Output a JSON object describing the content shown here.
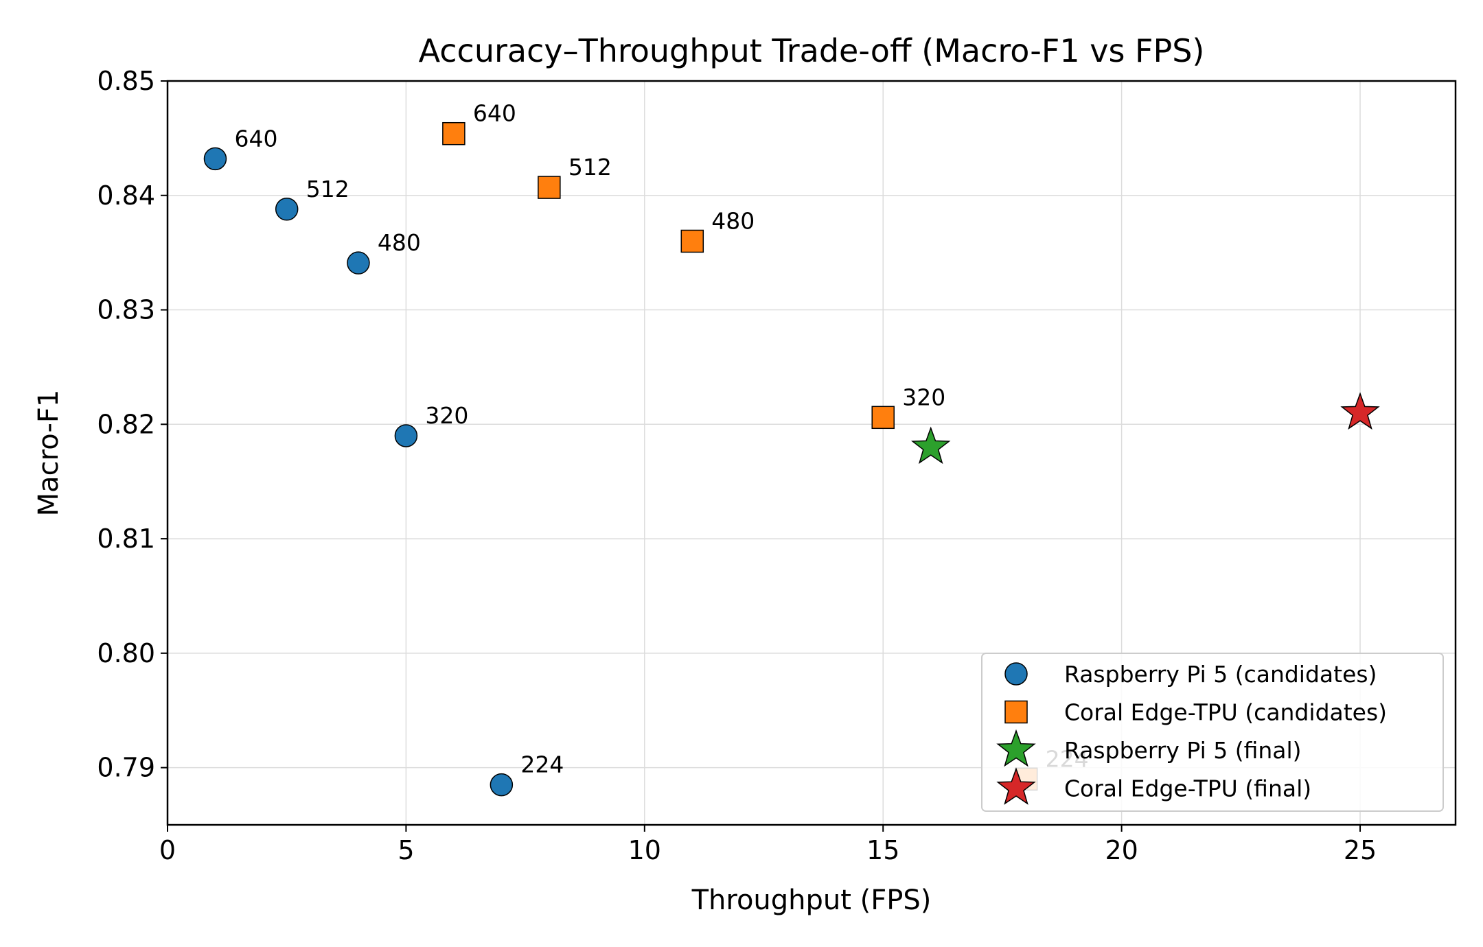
{
  "chart_data": {
    "type": "scatter",
    "title": "Accuracy–Throughput Trade-off (Macro-F1 vs FPS)",
    "xlabel": "Throughput (FPS)",
    "ylabel": "Macro-F1",
    "xlim": [
      0,
      27
    ],
    "ylim": [
      0.785,
      0.85
    ],
    "xticks": [
      0,
      5,
      10,
      15,
      20,
      25
    ],
    "xtick_labels": [
      "0",
      "5",
      "10",
      "15",
      "20",
      "25"
    ],
    "yticks": [
      0.79,
      0.8,
      0.81,
      0.82,
      0.83,
      0.84,
      0.85
    ],
    "ytick_labels": [
      "0.79",
      "0.80",
      "0.81",
      "0.82",
      "0.83",
      "0.84",
      "0.85"
    ],
    "grid": true,
    "legend_position": "lower-right",
    "series": [
      {
        "name": "Raspberry Pi 5 (candidates)",
        "marker": "circle",
        "color": "#1f77b4",
        "points": [
          {
            "x": 1,
            "y": 0.8432,
            "label": "640"
          },
          {
            "x": 2.5,
            "y": 0.8388,
            "label": "512"
          },
          {
            "x": 4,
            "y": 0.8341,
            "label": "480"
          },
          {
            "x": 5,
            "y": 0.819,
            "label": "320"
          },
          {
            "x": 7,
            "y": 0.7885,
            "label": "224"
          }
        ]
      },
      {
        "name": "Coral Edge-TPU (candidates)",
        "marker": "square",
        "color": "#ff7f0e",
        "points": [
          {
            "x": 6,
            "y": 0.8454,
            "label": "640"
          },
          {
            "x": 8,
            "y": 0.8407,
            "label": "512"
          },
          {
            "x": 11,
            "y": 0.836,
            "label": "480"
          },
          {
            "x": 15,
            "y": 0.8206,
            "label": "320"
          },
          {
            "x": 18,
            "y": 0.789,
            "label": "224"
          }
        ]
      },
      {
        "name": "Raspberry Pi 5 (final)",
        "marker": "star",
        "color": "#2ca02c",
        "points": [
          {
            "x": 16,
            "y": 0.818
          }
        ]
      },
      {
        "name": "Coral Edge-TPU (final)",
        "marker": "star",
        "color": "#d62728",
        "points": [
          {
            "x": 25,
            "y": 0.821
          }
        ]
      }
    ]
  }
}
